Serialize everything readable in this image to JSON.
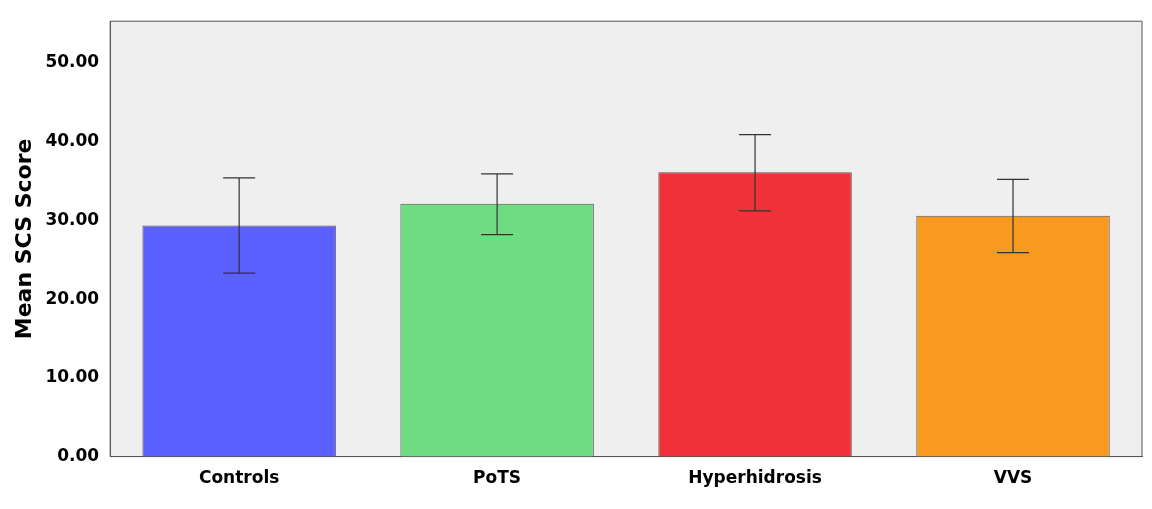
{
  "chart_data": {
    "type": "bar",
    "ylabel": "Mean SCS Score",
    "categories": [
      "Controls",
      "PoTS",
      "Hyperhidrosis",
      "VVS"
    ],
    "values": [
      29.35,
      32.1,
      36.1,
      30.6
    ],
    "colors": [
      "#5b5ffd",
      "#70dc82",
      "#ef3139",
      "#f79a1f"
    ],
    "errors": [
      [
        23.3,
        35.4
      ],
      [
        28.2,
        35.9
      ],
      [
        31.2,
        40.9
      ],
      [
        25.9,
        35.2
      ]
    ],
    "ylim": [
      0,
      55.3
    ],
    "yticks": [
      {
        "value": 0,
        "label": "0.00"
      },
      {
        "value": 10,
        "label": "10.00"
      },
      {
        "value": 20,
        "label": "20.00"
      },
      {
        "value": 30,
        "label": "30.00"
      },
      {
        "value": 40,
        "label": "40.00"
      },
      {
        "value": 50,
        "label": "50.00"
      }
    ],
    "grid": false,
    "legend": false
  }
}
